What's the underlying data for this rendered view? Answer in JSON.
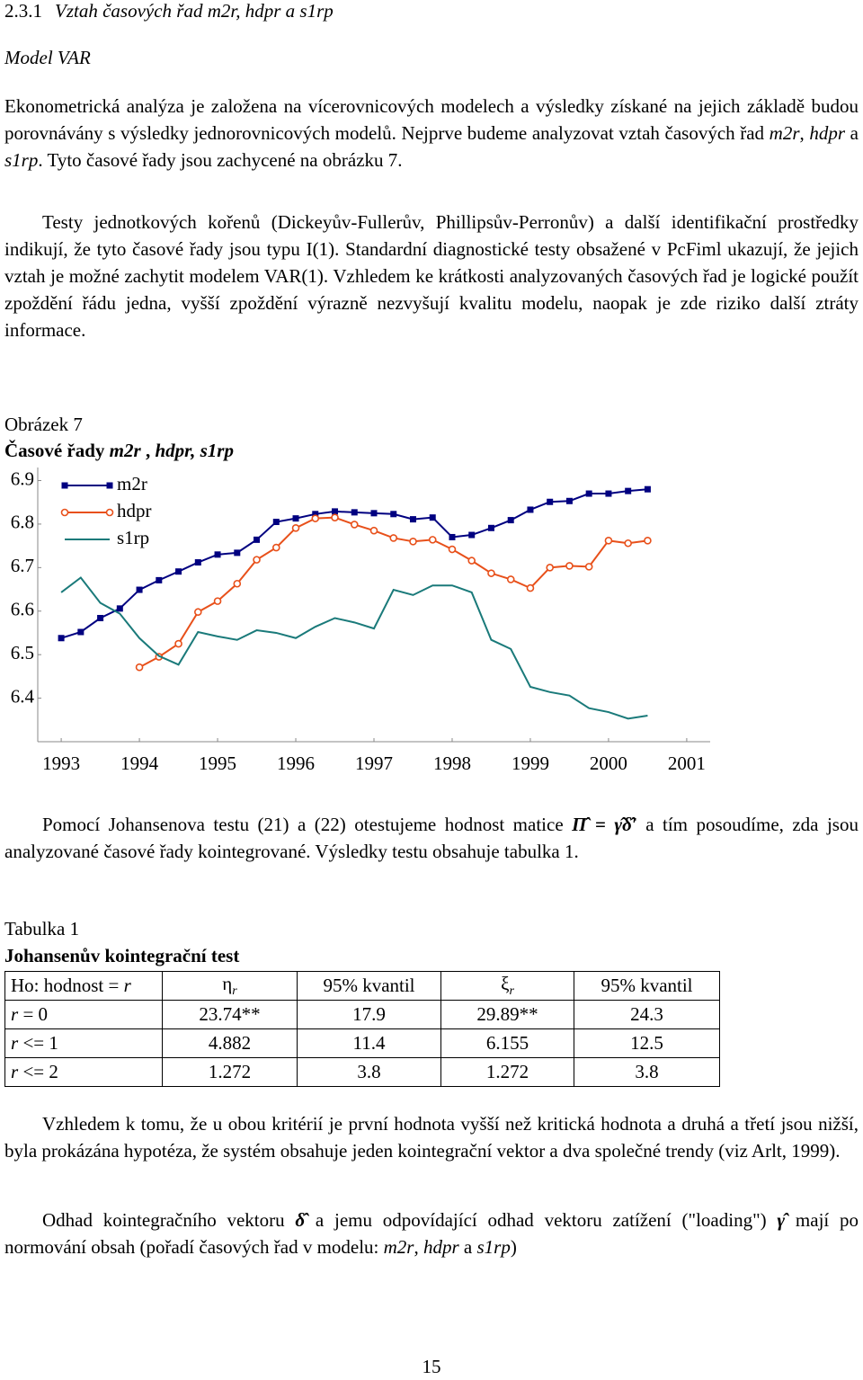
{
  "heading": {
    "number": "2.3.1",
    "title": "Vztah časových řad m2r, hdpr a s1rp"
  },
  "subheading": "Model VAR",
  "paragraph1": [
    {
      "text": "Ekonometrická analýza je založena na vícerovnicových modelech a výsledky získané na jejich základě budou porovnávány s výsledky jednorovnicových modelů. Nejprve budeme analyzovat vztah časových řad "
    },
    {
      "text": "m2r",
      "style": "italic"
    },
    {
      "text": ", "
    },
    {
      "text": "hdpr",
      "style": "italic"
    },
    {
      "text": " a "
    },
    {
      "text": "s1rp",
      "style": "italic"
    },
    {
      "text": ". Tyto časové řady jsou zachycené na obrázku 7."
    }
  ],
  "paragraph2": [
    {
      "text": "Testy jednotkových kořenů (Dickeyův-Fullerův, Phillipsův-Perronův) a další identifikační prostředky indikují, že tyto časové řady jsou typu I(1). Standardní diagnostické testy obsažené v PcFiml ukazují, že jejich vztah je možné zachytit modelem VAR(1). Vzhledem ke krátkosti analyzovaných časových řad je logické použít zpoždění řádu jedna, vyšší zpoždění výrazně nezvyšují kvalitu modelu, naopak je zde riziko další ztráty informace."
    }
  ],
  "figure": {
    "label": "Obrázek 7",
    "title": [
      {
        "text": "Časové řady ",
        "style": "bold"
      },
      {
        "text": "m2r",
        "style": "bold-italic"
      },
      {
        "text": " , ",
        "style": "bold"
      },
      {
        "text": "hdpr, s1rp",
        "style": "bold-italic"
      }
    ]
  },
  "chart_data": {
    "type": "line",
    "x": [
      1993,
      1993.25,
      1993.5,
      1993.75,
      1994,
      1994.25,
      1994.5,
      1994.75,
      1995,
      1995.25,
      1995.5,
      1995.75,
      1996,
      1996.25,
      1996.5,
      1996.75,
      1997,
      1997.25,
      1997.5,
      1997.75,
      1998,
      1998.25,
      1998.5,
      1998.75,
      1999,
      1999.25,
      1999.5,
      1999.75,
      2000,
      2000.25,
      2000.5
    ],
    "series": [
      {
        "name": "m2r",
        "color": "#000080",
        "marker": "square",
        "values": [
          6.538,
          6.552,
          6.584,
          6.606,
          6.649,
          6.671,
          6.691,
          6.712,
          6.73,
          6.734,
          6.764,
          6.805,
          6.813,
          6.823,
          6.829,
          6.827,
          6.825,
          6.823,
          6.811,
          6.815,
          6.77,
          6.775,
          6.791,
          6.809,
          6.833,
          6.851,
          6.853,
          6.87,
          6.87,
          6.876,
          6.88
        ]
      },
      {
        "name": "hdpr",
        "color": "#e8501a",
        "marker": "circle",
        "values": [
          null,
          null,
          null,
          null,
          6.471,
          6.495,
          6.525,
          6.598,
          6.623,
          6.663,
          6.718,
          6.746,
          6.791,
          6.813,
          6.815,
          6.799,
          6.785,
          6.768,
          6.76,
          6.764,
          6.742,
          6.716,
          6.687,
          6.673,
          6.653,
          6.7,
          6.704,
          6.702,
          6.762,
          6.756,
          6.762
        ]
      },
      {
        "name": "s1rp",
        "color": "#1a7a7a",
        "marker": "none",
        "values": [
          6.643,
          6.677,
          6.619,
          6.594,
          6.538,
          6.497,
          6.477,
          6.552,
          6.542,
          6.534,
          6.556,
          6.55,
          6.538,
          6.564,
          6.584,
          6.574,
          6.56,
          6.649,
          6.637,
          6.659,
          6.659,
          6.643,
          6.534,
          6.513,
          6.426,
          6.414,
          6.406,
          6.377,
          6.368,
          6.353,
          6.36
        ]
      }
    ],
    "xlim": [
      1992.7,
      2001.3
    ],
    "xticks": [
      1993,
      1994,
      1995,
      1996,
      1997,
      1998,
      1999,
      2000,
      2001
    ],
    "ylim": [
      6.3,
      6.93
    ],
    "yticks": [
      6.4,
      6.5,
      6.6,
      6.7,
      6.8,
      6.9
    ],
    "grid": false,
    "legend": "upper left"
  },
  "paragraph3": [
    {
      "text": "Pomocí Johansenova testu (21) a (22) otestujeme hodnost matice "
    },
    {
      "text": "Π̂ = γ̂δ̂′",
      "style": "math"
    },
    {
      "text": " a tím posoudíme, zda jsou analyzované časové řady kointegrované. Výsledky testu obsahuje tabulka 1."
    }
  ],
  "table": {
    "label": "Tabulka 1",
    "title": "Johansenův kointegrační test",
    "header": [
      [
        {
          "text": "Ho: hodnost = "
        },
        {
          "text": "r",
          "style": "italic"
        }
      ],
      [
        {
          "text": "η"
        },
        {
          "text": "r",
          "style": "sub"
        }
      ],
      [
        {
          "text": "95% kvantil"
        }
      ],
      [
        {
          "text": "ξ"
        },
        {
          "text": "r",
          "style": "sub"
        }
      ],
      [
        {
          "text": "95% kvantil"
        }
      ]
    ],
    "rows": [
      [
        [
          {
            "text": "r",
            "style": "italic"
          },
          {
            "text": " =  0"
          }
        ],
        "23.74**",
        "17.9",
        "29.89**",
        "24.3"
      ],
      [
        [
          {
            "text": "r",
            "style": "italic"
          },
          {
            "text": " <=  1"
          }
        ],
        "4.882",
        "11.4",
        "6.155",
        "12.5"
      ],
      [
        [
          {
            "text": "r",
            "style": "italic"
          },
          {
            "text": " <=  2"
          }
        ],
        "1.272",
        "3.8",
        "1.272",
        "3.8"
      ]
    ]
  },
  "paragraph4": [
    {
      "text": "Vzhledem k tomu, že u obou kritérií je první hodnota vyšší než kritická hodnota a druhá a třetí jsou nižší, byla prokázána hypotéza, že systém obsahuje jeden kointegrační vektor a dva společné trendy (viz Arlt, 1999)."
    }
  ],
  "paragraph5": [
    {
      "text": "Odhad kointegračního vektoru "
    },
    {
      "text": "δ̂",
      "style": "math"
    },
    {
      "text": " a jemu odpovídající odhad vektoru zatížení (\"loading\") "
    },
    {
      "text": "γ̂",
      "style": "math"
    },
    {
      "text": " mají po normování obsah (pořadí časových řad v modelu: "
    },
    {
      "text": "m2r",
      "style": "italic"
    },
    {
      "text": ", "
    },
    {
      "text": "hdpr",
      "style": "italic"
    },
    {
      "text": " a "
    },
    {
      "text": "s1rp",
      "style": "italic"
    },
    {
      "text": ")"
    }
  ],
  "page_number": "15"
}
